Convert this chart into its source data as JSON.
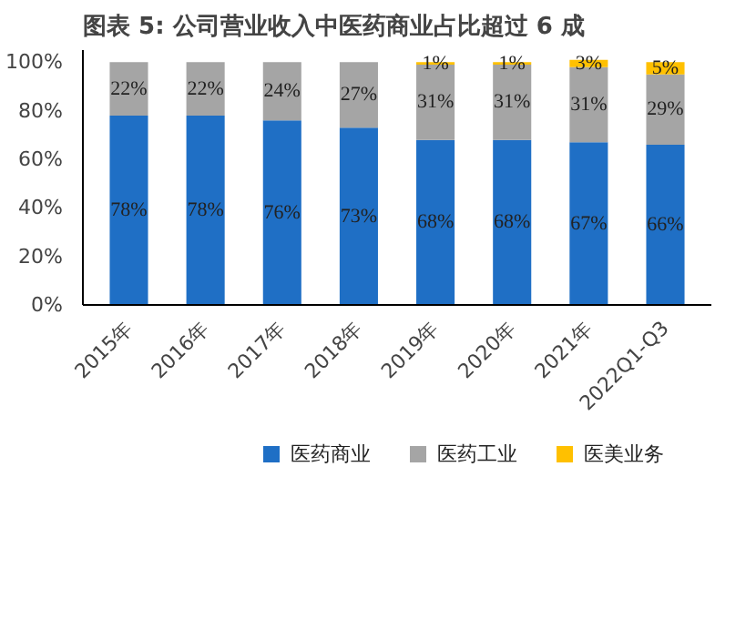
{
  "chart_data": {
    "type": "bar",
    "title": "图表 5:  公司营业收入中医药商业占比超过 6 成",
    "stacked": true,
    "categories": [
      "2015年",
      "2016年",
      "2017年",
      "2018年",
      "2019年",
      "2020年",
      "2021年",
      "2022Q1-Q3"
    ],
    "series": [
      {
        "name": "医药商业",
        "color": "#1f6fc5",
        "values": [
          78,
          78,
          76,
          73,
          68,
          68,
          67,
          66
        ],
        "value_labels": [
          "78%",
          "78%",
          "76%",
          "73%",
          "68%",
          "68%",
          "67%",
          "66%"
        ]
      },
      {
        "name": "医药工业",
        "color": "#a5a5a5",
        "values": [
          22,
          22,
          24,
          27,
          31,
          31,
          31,
          29
        ],
        "value_labels": [
          "22%",
          "22%",
          "24%",
          "27%",
          "31%",
          "31%",
          "31%",
          "29%"
        ]
      },
      {
        "name": "医美业务",
        "color": "#ffc000",
        "values": [
          0,
          0,
          0,
          0,
          1,
          1,
          3,
          5
        ],
        "value_labels": [
          null,
          null,
          null,
          null,
          "1%",
          "1%",
          "3%",
          "5%"
        ]
      }
    ],
    "ylim": [
      0,
      105
    ],
    "yticks": [
      {
        "value": 0,
        "label": "0%"
      },
      {
        "value": 20,
        "label": "20%"
      },
      {
        "value": 40,
        "label": "40%"
      },
      {
        "value": 60,
        "label": "60%"
      },
      {
        "value": 80,
        "label": "80%"
      },
      {
        "value": 100,
        "label": "100%"
      }
    ],
    "grid": false,
    "legend": "bottom"
  }
}
